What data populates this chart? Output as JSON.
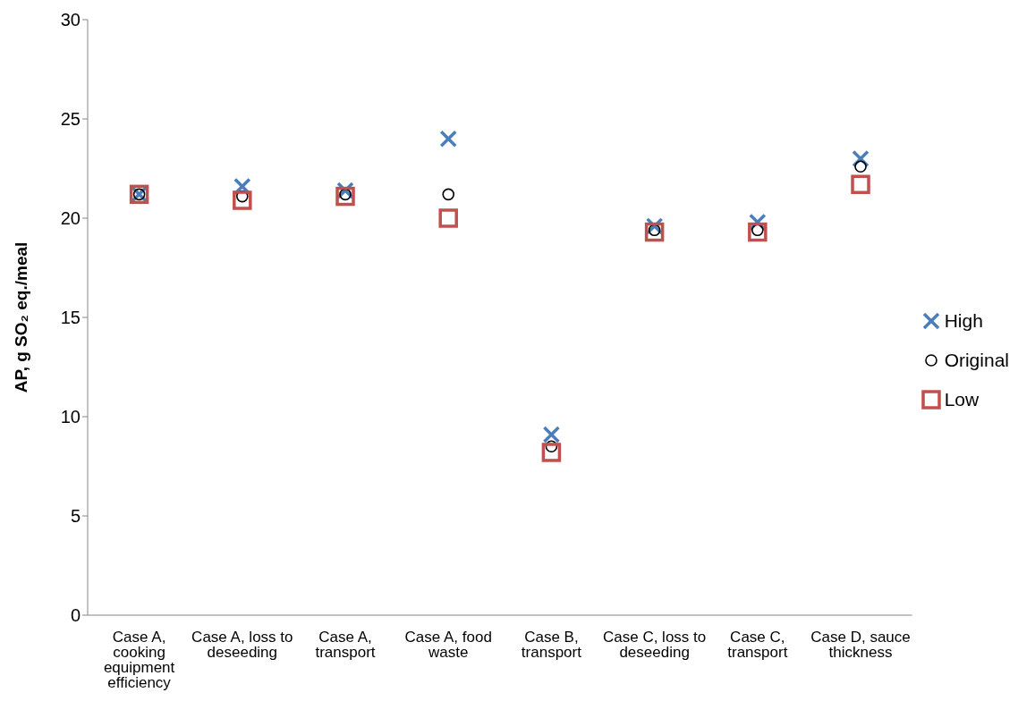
{
  "chart_data": {
    "type": "scatter",
    "ylabel": "AP, g SO₂ eq./meal",
    "categories": [
      "Case A, cooking equipment efficiency",
      "Case A, loss to deseeding",
      "Case A, transport",
      "Case A, food waste",
      "Case B, transport",
      "Case C, loss to deseeding",
      "Case C, transport",
      "Case D, sauce thickness"
    ],
    "series": [
      {
        "name": "High",
        "color": "#4a7ebb",
        "marker": "cross",
        "values": [
          21.2,
          21.6,
          21.4,
          24.0,
          9.1,
          19.6,
          19.8,
          23.0
        ]
      },
      {
        "name": "Original",
        "color": "#000000",
        "marker": "circle",
        "values": [
          21.2,
          21.1,
          21.2,
          21.2,
          8.5,
          19.4,
          19.4,
          22.6
        ]
      },
      {
        "name": "Low",
        "color": "#c0504d",
        "marker": "square",
        "values": [
          21.2,
          20.9,
          21.1,
          20.0,
          8.2,
          19.3,
          19.3,
          21.7
        ]
      }
    ],
    "ylim": [
      0,
      30
    ],
    "yticks": [
      0,
      5,
      10,
      15,
      20,
      25,
      30
    ],
    "grid": false,
    "legend": "right"
  }
}
